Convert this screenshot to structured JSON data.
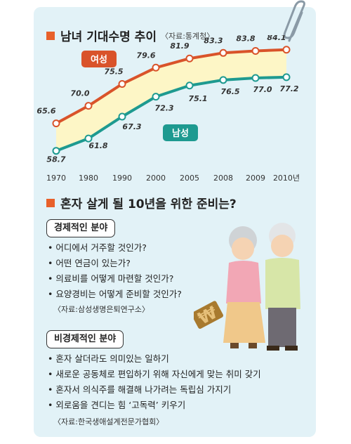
{
  "chart_section": {
    "title": "남녀 기대수명 추이",
    "source": "〈자료:통계청〉"
  },
  "chart_data": {
    "type": "line",
    "categories": [
      "1970",
      "1980",
      "1990",
      "2000",
      "2005",
      "2008",
      "2009",
      "2010년"
    ],
    "series": [
      {
        "name": "여성",
        "values": [
          65.6,
          70.0,
          75.5,
          79.6,
          81.9,
          83.3,
          83.8,
          84.1
        ],
        "labels": [
          "65.6",
          "70.0",
          "75.5",
          "79.6",
          "81.9",
          "83.3",
          "83.8",
          "84.1"
        ],
        "color": "#d9532a"
      },
      {
        "name": "남성",
        "values": [
          58.7,
          61.8,
          67.3,
          72.3,
          75.1,
          76.5,
          77.0,
          77.2
        ],
        "labels": [
          "58.7",
          "61.8",
          "67.3",
          "72.3",
          "75.1",
          "76.5",
          "77.0",
          "77.2"
        ],
        "color": "#1e9a90"
      }
    ],
    "ylim": [
      56,
      86
    ],
    "grid": false,
    "fill_color": "#fdf6c6"
  },
  "prep_section": {
    "title": "혼자 살게 될 10년을 위한 준비는?",
    "economic": {
      "label": "경제적인 분야",
      "items": [
        "어디에서 거주할 것인가?",
        "어떤 연금이 있는가?",
        "의료비를 어떻게 마련할 것인가?",
        "요양경비는 어떻게 준비할 것인가?"
      ],
      "source": "〈자료:삼성생명은퇴연구소〉"
    },
    "non_economic": {
      "label": "비경제적인 분야",
      "items": [
        "혼자 살더라도 의미있는 일하기",
        "새로운 공동체로 편입하기 위해 자신에게 맞는 취미 갖기",
        "혼자서 의식주를 해결해 나가려는 독립심 가지기",
        "외로움을 견디는 힘 ‘고독력’ 키우기"
      ],
      "source": "〈자료:한국생애설계전문가협회〉"
    }
  },
  "colors": {
    "accent": "#e8602a",
    "card_bg": "#e2f2f7",
    "female": "#d9532a",
    "male": "#1e9a90"
  },
  "icons": [
    "paperclip-icon",
    "elderly-couple-icon",
    "won-sign-icon"
  ]
}
